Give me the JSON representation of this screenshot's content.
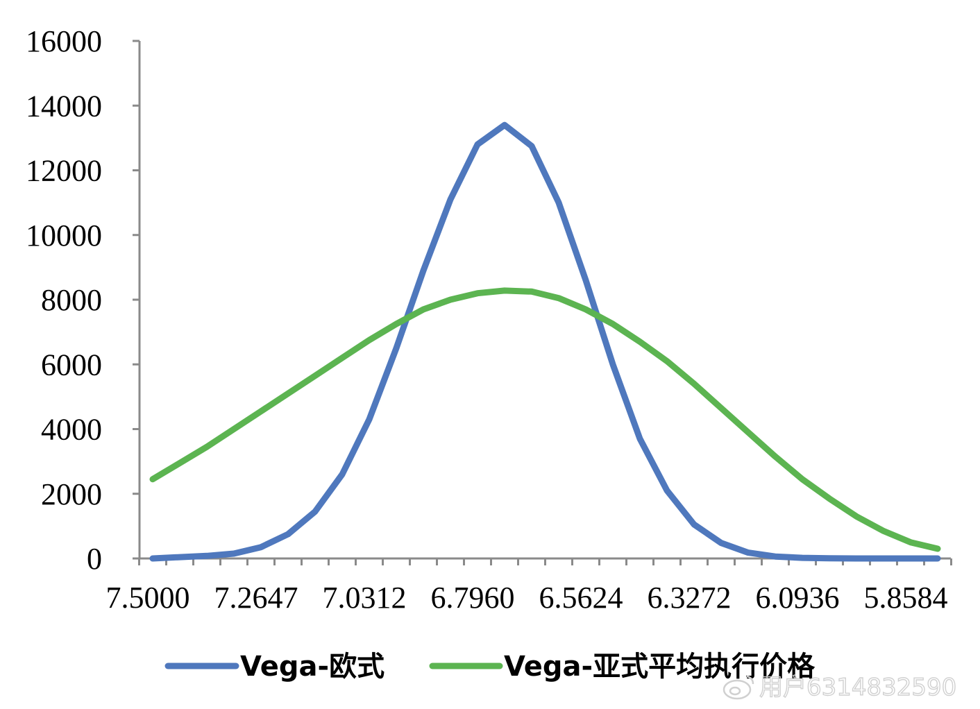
{
  "chart_data": {
    "type": "line",
    "title": "",
    "xlabel": "",
    "ylabel": "",
    "ylim": [
      0,
      16000
    ],
    "yticks": [
      0,
      2000,
      4000,
      6000,
      8000,
      10000,
      12000,
      14000,
      16000
    ],
    "ytick_labels": [
      "0",
      "2000",
      "4000",
      "6000",
      "8000",
      "10000",
      "12000",
      "14000",
      "16000"
    ],
    "xtick_labels": [
      "7.5000",
      "7.2647",
      "7.0312",
      "6.7960",
      "6.5624",
      "6.3272",
      "6.0936",
      "5.8584"
    ],
    "grid": false,
    "legend_position": "bottom",
    "series": [
      {
        "name": "Vega-欧式",
        "color": "#4f78bd",
        "values": [
          0,
          40,
          80,
          150,
          350,
          750,
          1450,
          2600,
          4300,
          6500,
          8900,
          11100,
          12800,
          13400,
          12750,
          11000,
          8600,
          6000,
          3700,
          2100,
          1050,
          480,
          180,
          60,
          20,
          5,
          0,
          0,
          0,
          0
        ]
      },
      {
        "name": "Vega-亚式平均执行价格",
        "color": "#5cb451",
        "values": [
          2450,
          2950,
          3450,
          4000,
          4550,
          5100,
          5650,
          6200,
          6750,
          7250,
          7700,
          8000,
          8200,
          8280,
          8250,
          8050,
          7700,
          7250,
          6700,
          6100,
          5400,
          4650,
          3900,
          3150,
          2450,
          1850,
          1300,
          850,
          500,
          300
        ]
      }
    ]
  },
  "watermark": {
    "text": "用户6314832590",
    "icon": "weibo-logo-icon"
  }
}
